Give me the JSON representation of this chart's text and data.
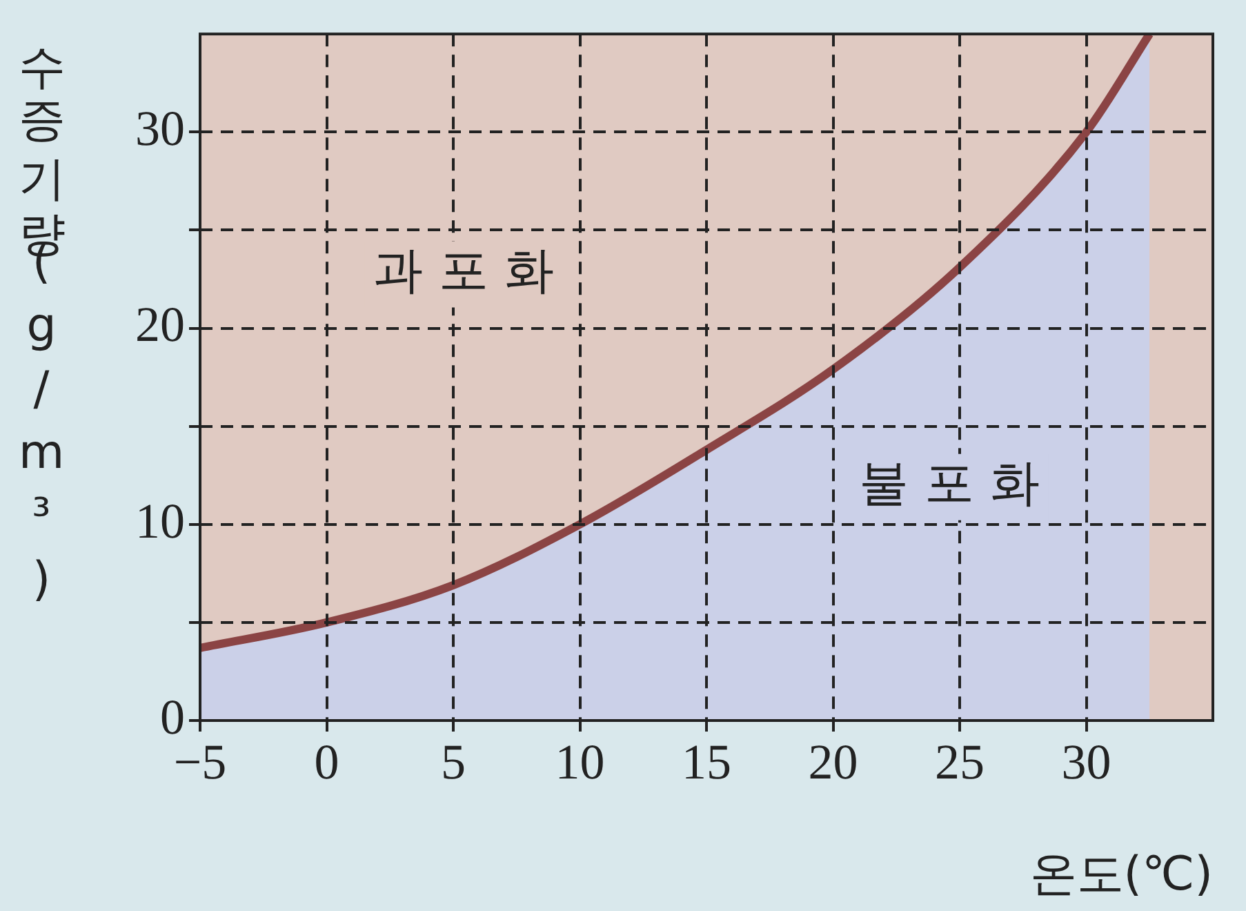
{
  "chart_data": {
    "type": "area",
    "xlabel": "온도(℃)",
    "ylabel": "수증기량(g/m³)",
    "x": [
      -5,
      0,
      5,
      10,
      15,
      20,
      25,
      30,
      32.5
    ],
    "series": [
      {
        "color": "#8b4444",
        "values": [
          3.7,
          5,
          6.9,
          10,
          13.8,
          17.9,
          23.1,
          30,
          35
        ]
      }
    ],
    "xlim": [
      -5,
      35
    ],
    "ylim": [
      0,
      35
    ],
    "xticks": [
      {
        "value": -5,
        "label": "−5"
      },
      0,
      5,
      10,
      15,
      20,
      25,
      30
    ],
    "yticks": [
      0,
      {
        "value": 5,
        "label": null
      },
      10,
      {
        "value": 15,
        "label": null
      },
      20,
      {
        "value": 25,
        "label": null
      },
      30
    ],
    "grid": true,
    "line_style": "solid",
    "annotations": [
      "과 포 화",
      "불 포 화"
    ]
  }
}
